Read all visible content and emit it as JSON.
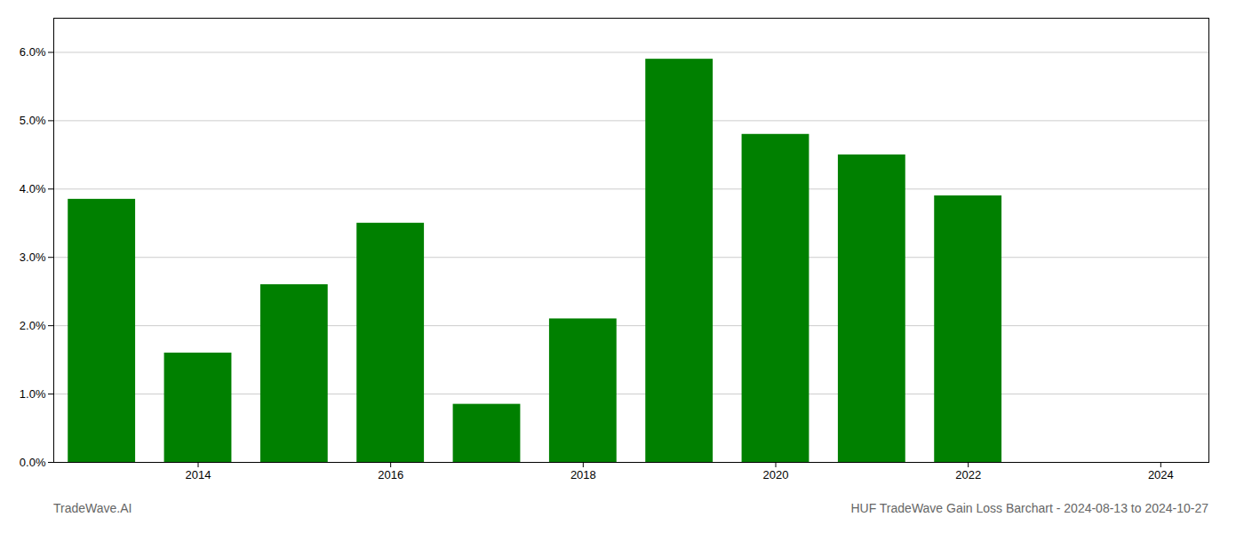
{
  "chart_data": {
    "type": "bar",
    "title": "HUF TradeWave Gain Loss Barchart - 2024-08-13 to 2024-10-27",
    "annotations": [
      "TradeWave.AI"
    ],
    "x": [
      2013,
      2014,
      2015,
      2016,
      2017,
      2018,
      2019,
      2020,
      2021,
      2022,
      2023
    ],
    "values": [
      0.0385,
      0.016,
      0.026,
      0.035,
      0.0085,
      0.021,
      0.059,
      0.048,
      0.045,
      0.039,
      0.0
    ],
    "color": "#008000",
    "xlim": [
      2012.5,
      2024.5
    ],
    "xticks": [
      2014,
      2016,
      2018,
      2020,
      2022,
      2024
    ],
    "ylim": [
      0.0,
      0.065
    ],
    "yticks": [
      {
        "value": 0.0,
        "label": "0.0%"
      },
      {
        "value": 0.01,
        "label": "1.0%"
      },
      {
        "value": 0.02,
        "label": "2.0%"
      },
      {
        "value": 0.03,
        "label": "3.0%"
      },
      {
        "value": 0.04,
        "label": "4.0%"
      },
      {
        "value": 0.05,
        "label": "5.0%"
      },
      {
        "value": 0.06,
        "label": "6.0%"
      }
    ],
    "grid": true
  }
}
